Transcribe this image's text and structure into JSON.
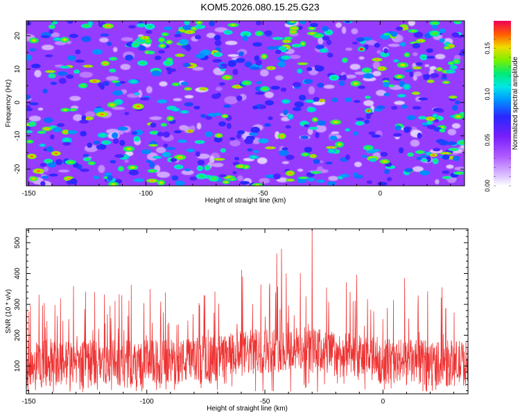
{
  "title": "KOM5.2026.080.15.25.G23",
  "chart_data": [
    {
      "type": "heatmap",
      "title": "KOM5.2026.080.15.25.G23",
      "xlabel": "Height of straight line (km)",
      "ylabel": "Frequency (Hz)",
      "xlim": [
        -151,
        36
      ],
      "ylim": [
        -25,
        24.5
      ],
      "xticks": [
        -150,
        -100,
        -50,
        0
      ],
      "yticks": [
        -20,
        -10,
        0,
        10,
        20
      ],
      "colorbar": {
        "label": "Normalized spectral amplitude",
        "range": [
          0.0,
          0.18
        ],
        "ticks": [
          "0.00",
          "0.05",
          "0.10",
          "0.15"
        ],
        "tick_values": [
          0.0,
          0.05,
          0.1,
          0.15
        ]
      },
      "peaks": [
        {
          "x": -8,
          "y": 16,
          "value": 0.18
        },
        {
          "x": -5,
          "y": -2.5,
          "value": 0.17
        },
        {
          "x": -93,
          "y": 17,
          "value": 0.15
        },
        {
          "x": -140,
          "y": 8,
          "value": 0.12
        }
      ]
    },
    {
      "type": "line",
      "xlabel": "Height of straight line (km)",
      "ylabel": "SNR (10 * v/v)",
      "xlim": [
        -151,
        36
      ],
      "ylim": [
        10,
        545
      ],
      "xticks": [
        -150,
        -100,
        -50,
        0
      ],
      "yticks": [
        100,
        200,
        300,
        400,
        500
      ],
      "series": [
        {
          "name": "SNR",
          "color": "#ee3333",
          "baseline": 110,
          "notable_peaks": [
            [
              -30,
              545
            ],
            [
              -43,
              480
            ],
            [
              -45,
              465
            ],
            [
              -41,
              400
            ],
            [
              -122,
              340
            ]
          ]
        }
      ]
    }
  ]
}
